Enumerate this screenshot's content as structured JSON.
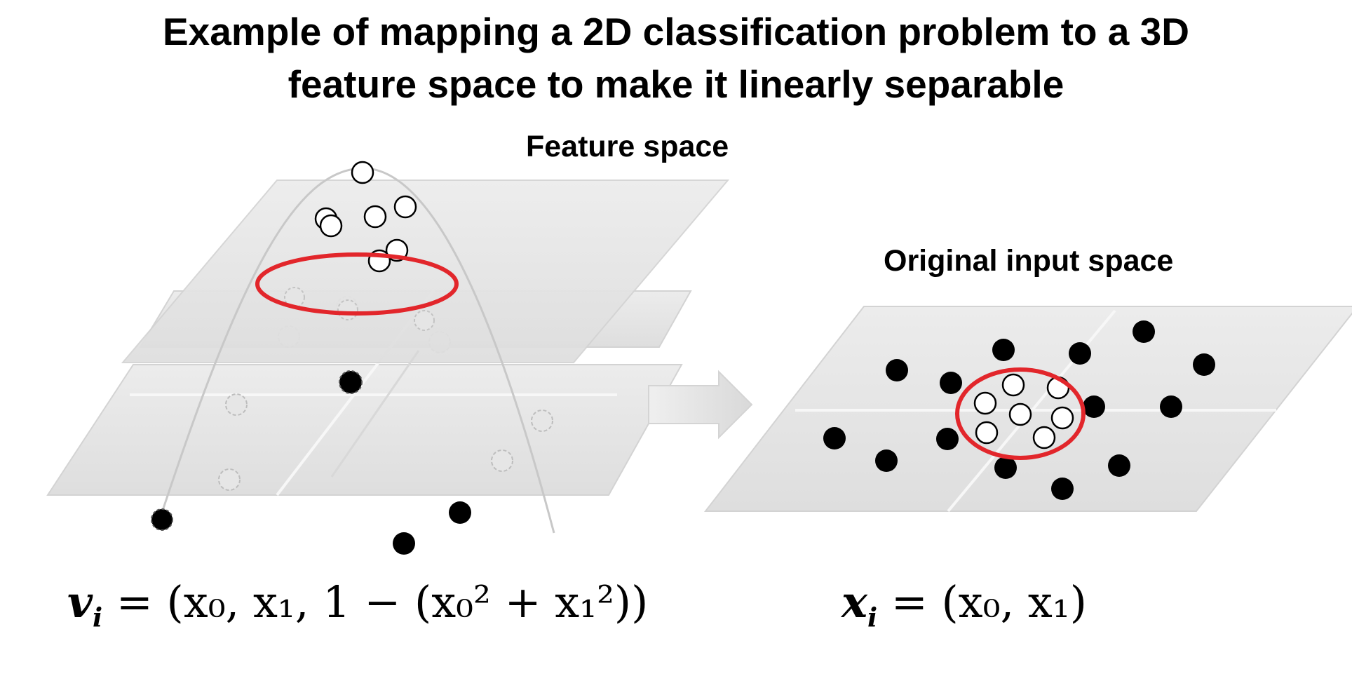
{
  "title": {
    "line1": "Example of mapping a 2D classification problem to a 3D",
    "line2": "feature space to make it linearly separable"
  },
  "labels": {
    "feature_space": "Feature space",
    "original_input_space": "Original input space"
  },
  "formulas": {
    "feature": {
      "lhs": "v",
      "lhs_sub": "i",
      "rhs": "= (x₀, x₁, 1 − (x₀² + x₁²))"
    },
    "input": {
      "lhs": "x",
      "lhs_sub": "i",
      "rhs": "= (x₀, x₁)"
    }
  },
  "colors": {
    "plane_fill": "#e6e6e6",
    "plane_stroke": "#d0d0d0",
    "decision_boundary": "#e2262b",
    "class_positive": "#ffffff",
    "class_negative": "#000000",
    "arrow": "#e3e3e3"
  }
}
